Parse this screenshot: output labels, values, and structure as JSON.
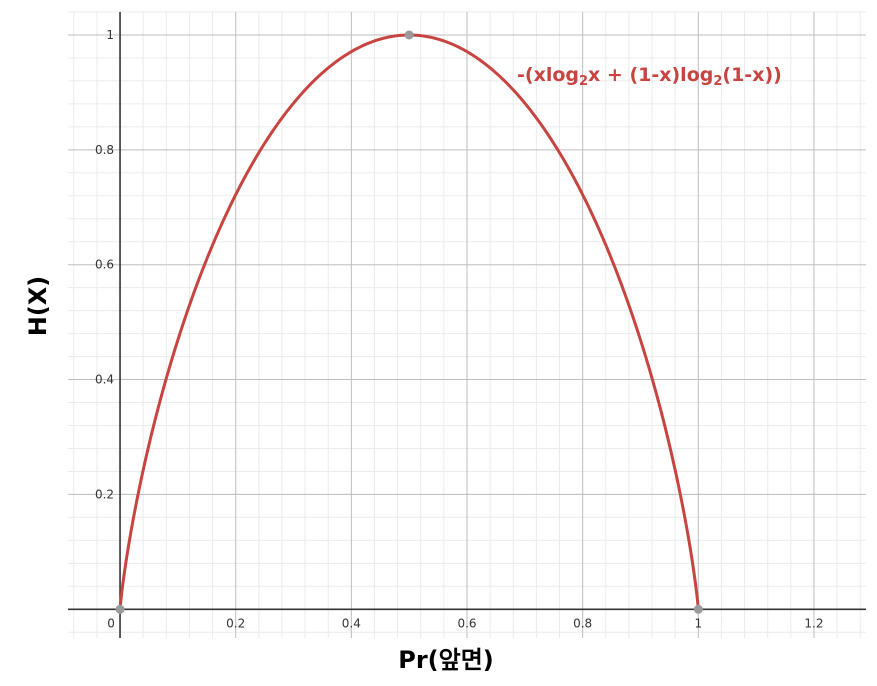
{
  "chart_data": {
    "type": "line",
    "xlabel": "Pr(앞면)",
    "ylabel": "H(X)",
    "xlim": [
      -0.09,
      1.29
    ],
    "ylim": [
      -0.05,
      1.04
    ],
    "x_ticks": [
      {
        "value": 0,
        "label": "0"
      },
      {
        "value": 0.2,
        "label": "0.2"
      },
      {
        "value": 0.4,
        "label": "0.4"
      },
      {
        "value": 0.6,
        "label": "0.6"
      },
      {
        "value": 0.8,
        "label": "0.8"
      },
      {
        "value": 1,
        "label": "1"
      },
      {
        "value": 1.2,
        "label": "1.2"
      }
    ],
    "y_ticks": [
      {
        "value": 0.2,
        "label": "0.2"
      },
      {
        "value": 0.4,
        "label": "0.4"
      },
      {
        "value": 0.6,
        "label": "0.6"
      },
      {
        "value": 0.8,
        "label": "0.8"
      },
      {
        "value": 1,
        "label": "1"
      }
    ],
    "grid": true,
    "minor_grid_step": 0.04,
    "series": [
      {
        "name": "-(xlog₂x + (1-x)log₂(1-x))",
        "color": "#c74440",
        "x": [
          0,
          0.01,
          0.02,
          0.05,
          0.1,
          0.15,
          0.2,
          0.25,
          0.3,
          0.35,
          0.4,
          0.45,
          0.5,
          0.55,
          0.6,
          0.65,
          0.7,
          0.75,
          0.8,
          0.85,
          0.9,
          0.95,
          0.98,
          0.99,
          1
        ],
        "y": [
          0,
          0.081,
          0.141,
          0.286,
          0.469,
          0.61,
          0.722,
          0.811,
          0.881,
          0.934,
          0.971,
          0.993,
          1.0,
          0.993,
          0.971,
          0.934,
          0.881,
          0.811,
          0.722,
          0.61,
          0.469,
          0.286,
          0.141,
          0.081,
          0
        ]
      }
    ],
    "highlighted_points": [
      {
        "x": 0,
        "y": 0
      },
      {
        "x": 0.5,
        "y": 1
      },
      {
        "x": 1,
        "y": 0
      }
    ],
    "point_color": "#9a9a9a",
    "legend": {
      "placement": "top-right",
      "parts": [
        {
          "text": "-(xlog",
          "sub": false
        },
        {
          "text": "2",
          "sub": true
        },
        {
          "text": "x + (1-x)log",
          "sub": false
        },
        {
          "text": "2",
          "sub": true
        },
        {
          "text": "(1-x))",
          "sub": false
        }
      ]
    }
  }
}
